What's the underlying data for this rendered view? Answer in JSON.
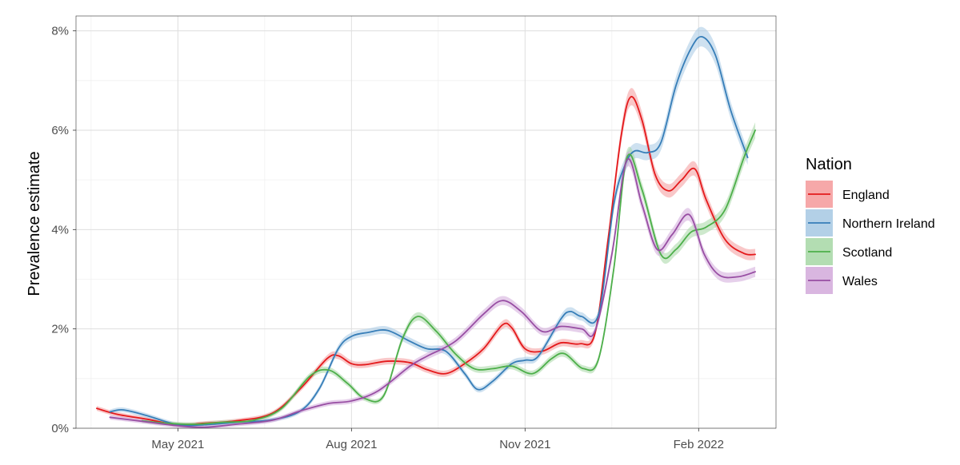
{
  "chart_data": {
    "type": "line",
    "title": "",
    "xlabel": "",
    "ylabel": "Prevalence estimate",
    "ylim": [
      0,
      8.3
    ],
    "xlim": [
      "2021-03-08",
      "2022-03-14"
    ],
    "x_ticks": [
      {
        "date": "2021-05-01",
        "label": "May 2021"
      },
      {
        "date": "2021-08-01",
        "label": "Aug 2021"
      },
      {
        "date": "2021-11-01",
        "label": "Nov 2021"
      },
      {
        "date": "2022-02-01",
        "label": "Feb 2022"
      }
    ],
    "y_ticks": [
      {
        "value": 0,
        "label": "0%"
      },
      {
        "value": 2,
        "label": "2%"
      },
      {
        "value": 4,
        "label": "4%"
      },
      {
        "value": 6,
        "label": "6%"
      },
      {
        "value": 8,
        "label": "8%"
      }
    ],
    "grid": true,
    "legend": {
      "title": "Nation",
      "position": "right"
    },
    "series": [
      {
        "name": "England",
        "color": "#e41a1c",
        "fill": "#f4999a",
        "points": [
          [
            "2021-03-19",
            0.4
          ],
          [
            "2021-03-30",
            0.28
          ],
          [
            "2021-04-15",
            0.18
          ],
          [
            "2021-05-01",
            0.07
          ],
          [
            "2021-05-15",
            0.1
          ],
          [
            "2021-06-01",
            0.15
          ],
          [
            "2021-06-20",
            0.3
          ],
          [
            "2021-07-05",
            0.8
          ],
          [
            "2021-07-19",
            1.4
          ],
          [
            "2021-07-25",
            1.46
          ],
          [
            "2021-08-01",
            1.3
          ],
          [
            "2021-08-08",
            1.28
          ],
          [
            "2021-08-20",
            1.35
          ],
          [
            "2021-09-01",
            1.32
          ],
          [
            "2021-09-10",
            1.18
          ],
          [
            "2021-09-20",
            1.1
          ],
          [
            "2021-09-30",
            1.3
          ],
          [
            "2021-10-10",
            1.6
          ],
          [
            "2021-10-20",
            2.08
          ],
          [
            "2021-10-25",
            2.02
          ],
          [
            "2021-11-01",
            1.6
          ],
          [
            "2021-11-10",
            1.55
          ],
          [
            "2021-11-20",
            1.72
          ],
          [
            "2021-11-30",
            1.7
          ],
          [
            "2021-12-08",
            1.9
          ],
          [
            "2021-12-15",
            3.8
          ],
          [
            "2021-12-22",
            5.9
          ],
          [
            "2021-12-27",
            6.67
          ],
          [
            "2022-01-02",
            6.2
          ],
          [
            "2022-01-09",
            5.1
          ],
          [
            "2022-01-16",
            4.78
          ],
          [
            "2022-01-23",
            5.0
          ],
          [
            "2022-01-30",
            5.22
          ],
          [
            "2022-02-05",
            4.6
          ],
          [
            "2022-02-15",
            3.8
          ],
          [
            "2022-02-25",
            3.52
          ],
          [
            "2022-03-03",
            3.5
          ]
        ]
      },
      {
        "name": "Northern Ireland",
        "color": "#377eb8",
        "fill": "#a6c8e3",
        "points": [
          [
            "2021-03-26",
            0.33
          ],
          [
            "2021-04-02",
            0.37
          ],
          [
            "2021-04-15",
            0.25
          ],
          [
            "2021-05-01",
            0.07
          ],
          [
            "2021-05-15",
            0.07
          ],
          [
            "2021-06-01",
            0.12
          ],
          [
            "2021-06-20",
            0.17
          ],
          [
            "2021-07-05",
            0.35
          ],
          [
            "2021-07-15",
            0.8
          ],
          [
            "2021-07-25",
            1.6
          ],
          [
            "2021-08-01",
            1.85
          ],
          [
            "2021-08-10",
            1.93
          ],
          [
            "2021-08-20",
            1.97
          ],
          [
            "2021-09-01",
            1.75
          ],
          [
            "2021-09-10",
            1.6
          ],
          [
            "2021-09-20",
            1.55
          ],
          [
            "2021-09-30",
            1.1
          ],
          [
            "2021-10-07",
            0.78
          ],
          [
            "2021-10-15",
            0.95
          ],
          [
            "2021-10-25",
            1.3
          ],
          [
            "2021-11-01",
            1.37
          ],
          [
            "2021-11-08",
            1.45
          ],
          [
            "2021-11-20",
            2.2
          ],
          [
            "2021-11-25",
            2.35
          ],
          [
            "2021-12-01",
            2.25
          ],
          [
            "2021-12-10",
            2.3
          ],
          [
            "2021-12-18",
            4.5
          ],
          [
            "2021-12-24",
            5.3
          ],
          [
            "2021-12-29",
            5.58
          ],
          [
            "2022-01-05",
            5.55
          ],
          [
            "2022-01-12",
            5.75
          ],
          [
            "2022-01-20",
            6.9
          ],
          [
            "2022-01-28",
            7.65
          ],
          [
            "2022-02-03",
            7.88
          ],
          [
            "2022-02-10",
            7.5
          ],
          [
            "2022-02-18",
            6.4
          ],
          [
            "2022-02-27",
            5.45
          ]
        ]
      },
      {
        "name": "Scotland",
        "color": "#4daf4a",
        "fill": "#a6d7a4",
        "points": [
          [
            "2021-04-12",
            0.15
          ],
          [
            "2021-04-25",
            0.1
          ],
          [
            "2021-05-10",
            0.08
          ],
          [
            "2021-05-25",
            0.12
          ],
          [
            "2021-06-10",
            0.16
          ],
          [
            "2021-06-25",
            0.4
          ],
          [
            "2021-07-10",
            1.05
          ],
          [
            "2021-07-20",
            1.17
          ],
          [
            "2021-07-30",
            0.9
          ],
          [
            "2021-08-08",
            0.6
          ],
          [
            "2021-08-18",
            0.65
          ],
          [
            "2021-08-28",
            1.8
          ],
          [
            "2021-09-05",
            2.25
          ],
          [
            "2021-09-15",
            1.95
          ],
          [
            "2021-09-25",
            1.5
          ],
          [
            "2021-10-05",
            1.2
          ],
          [
            "2021-10-15",
            1.2
          ],
          [
            "2021-10-25",
            1.25
          ],
          [
            "2021-11-05",
            1.1
          ],
          [
            "2021-11-15",
            1.4
          ],
          [
            "2021-11-22",
            1.5
          ],
          [
            "2021-12-02",
            1.2
          ],
          [
            "2021-12-10",
            1.4
          ],
          [
            "2021-12-18",
            3.2
          ],
          [
            "2021-12-25",
            5.45
          ],
          [
            "2022-01-02",
            4.8
          ],
          [
            "2022-01-12",
            3.5
          ],
          [
            "2022-01-20",
            3.6
          ],
          [
            "2022-01-28",
            3.95
          ],
          [
            "2022-02-05",
            4.05
          ],
          [
            "2022-02-15",
            4.4
          ],
          [
            "2022-02-25",
            5.45
          ],
          [
            "2022-03-03",
            6.0
          ]
        ]
      },
      {
        "name": "Wales",
        "color": "#984ea3",
        "fill": "#d2a9da",
        "points": [
          [
            "2021-03-26",
            0.22
          ],
          [
            "2021-04-10",
            0.15
          ],
          [
            "2021-05-01",
            0.05
          ],
          [
            "2021-05-15",
            0.02
          ],
          [
            "2021-06-01",
            0.08
          ],
          [
            "2021-06-20",
            0.16
          ],
          [
            "2021-07-05",
            0.35
          ],
          [
            "2021-07-20",
            0.5
          ],
          [
            "2021-08-01",
            0.55
          ],
          [
            "2021-08-15",
            0.75
          ],
          [
            "2021-09-01",
            1.25
          ],
          [
            "2021-09-10",
            1.45
          ],
          [
            "2021-09-25",
            1.75
          ],
          [
            "2021-10-10",
            2.3
          ],
          [
            "2021-10-20",
            2.57
          ],
          [
            "2021-10-30",
            2.35
          ],
          [
            "2021-11-10",
            1.95
          ],
          [
            "2021-11-20",
            2.05
          ],
          [
            "2021-12-01",
            2.0
          ],
          [
            "2021-12-08",
            1.95
          ],
          [
            "2021-12-17",
            3.5
          ],
          [
            "2021-12-25",
            5.4
          ],
          [
            "2022-01-02",
            4.5
          ],
          [
            "2022-01-10",
            3.6
          ],
          [
            "2022-01-18",
            3.9
          ],
          [
            "2022-01-27",
            4.3
          ],
          [
            "2022-02-04",
            3.5
          ],
          [
            "2022-02-12",
            3.08
          ],
          [
            "2022-02-22",
            3.05
          ],
          [
            "2022-03-03",
            3.15
          ]
        ]
      }
    ]
  }
}
